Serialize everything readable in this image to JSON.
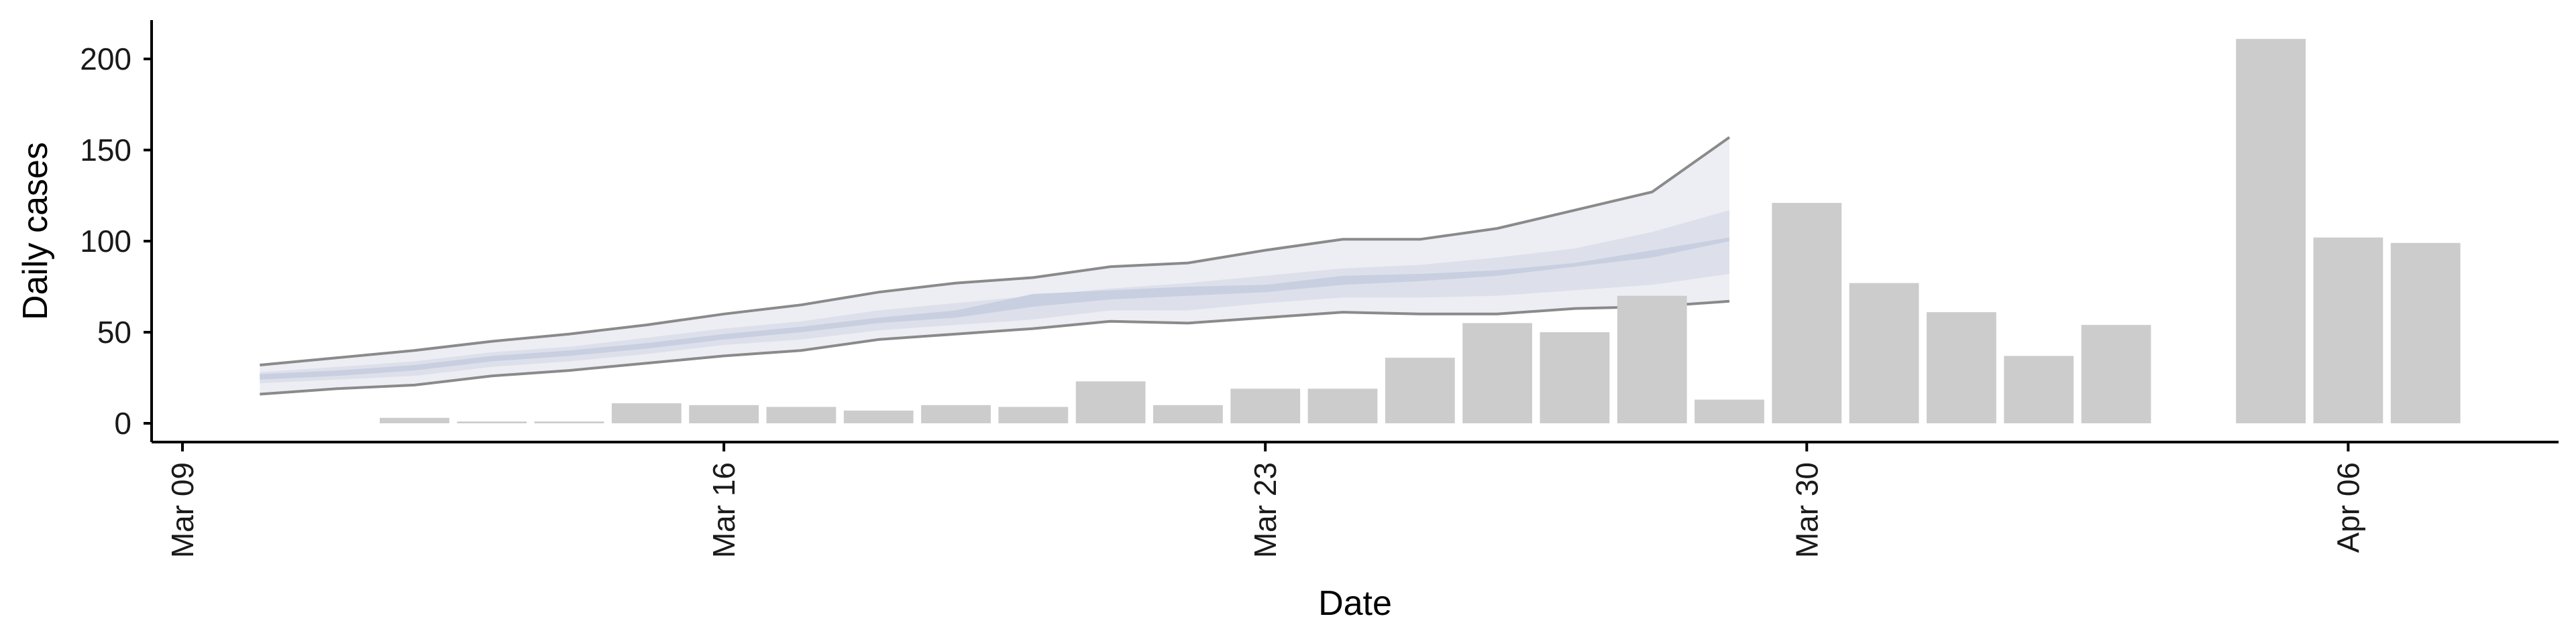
{
  "chart_data": {
    "type": "bar",
    "xlabel": "Date",
    "ylabel": "Daily cases",
    "ylim": [
      0,
      220
    ],
    "xlim": [
      "2020-03-09",
      "2020-04-08"
    ],
    "x_ticks": [
      {
        "date": "2020-03-09",
        "label": "Mar 09"
      },
      {
        "date": "2020-03-16",
        "label": "Mar 16"
      },
      {
        "date": "2020-03-23",
        "label": "Mar 23"
      },
      {
        "date": "2020-03-30",
        "label": "Mar 30"
      },
      {
        "date": "2020-04-06",
        "label": "Apr 06"
      }
    ],
    "y_ticks": [
      0,
      50,
      100,
      150,
      200
    ],
    "grid": false,
    "legend": "none",
    "bars": {
      "color": "#cccccc",
      "dates": [
        "2020-03-12",
        "2020-03-13",
        "2020-03-14",
        "2020-03-15",
        "2020-03-16",
        "2020-03-17",
        "2020-03-18",
        "2020-03-19",
        "2020-03-20",
        "2020-03-21",
        "2020-03-22",
        "2020-03-23",
        "2020-03-24",
        "2020-03-25",
        "2020-03-26",
        "2020-03-27",
        "2020-03-28",
        "2020-03-29",
        "2020-03-30",
        "2020-03-31",
        "2020-04-01",
        "2020-04-02",
        "2020-04-03",
        "2020-04-05",
        "2020-04-06",
        "2020-04-07"
      ],
      "values": [
        3,
        1,
        1,
        11,
        10,
        9,
        7,
        10,
        9,
        23,
        10,
        19,
        19,
        36,
        55,
        50,
        70,
        13,
        121,
        77,
        61,
        37,
        54,
        211,
        102,
        99
      ]
    },
    "forecast": {
      "dates": [
        "2020-03-10",
        "2020-03-11",
        "2020-03-12",
        "2020-03-13",
        "2020-03-14",
        "2020-03-15",
        "2020-03-16",
        "2020-03-17",
        "2020-03-18",
        "2020-03-19",
        "2020-03-20",
        "2020-03-21",
        "2020-03-22",
        "2020-03-23",
        "2020-03-24",
        "2020-03-25",
        "2020-03-26",
        "2020-03-27",
        "2020-03-28",
        "2020-03-29"
      ],
      "lower_outer": [
        16,
        19,
        21,
        26,
        29,
        33,
        37,
        40,
        46,
        49,
        52,
        56,
        55,
        58,
        61,
        60,
        60,
        63,
        64,
        67
      ],
      "upper_outer": [
        32,
        36,
        40,
        45,
        49,
        54,
        60,
        65,
        72,
        77,
        80,
        86,
        88,
        95,
        101,
        101,
        107,
        117,
        127,
        157
      ],
      "lower_inner": [
        22,
        24,
        26,
        31,
        34,
        38,
        43,
        46,
        51,
        54,
        57,
        62,
        62,
        66,
        69,
        69,
        70,
        73,
        76,
        82
      ],
      "upper_inner": [
        28,
        31,
        34,
        39,
        42,
        47,
        52,
        56,
        62,
        66,
        70,
        74,
        77,
        81,
        85,
        87,
        91,
        96,
        105,
        117
      ],
      "median_lower": [
        24,
        26,
        29,
        34,
        37,
        41,
        46,
        50,
        55,
        58,
        64,
        68,
        70,
        72,
        76,
        78,
        81,
        86,
        91,
        100
      ],
      "median_upper": [
        27,
        29,
        32,
        37,
        40,
        44,
        49,
        53,
        58,
        62,
        71,
        73,
        75,
        76,
        81,
        82,
        84,
        88,
        95,
        102
      ],
      "outer_color": "#eceef3",
      "inner_color": "#dde0ea",
      "median_color": "#c8cfe0",
      "line_color": "#8a8a8a"
    }
  }
}
